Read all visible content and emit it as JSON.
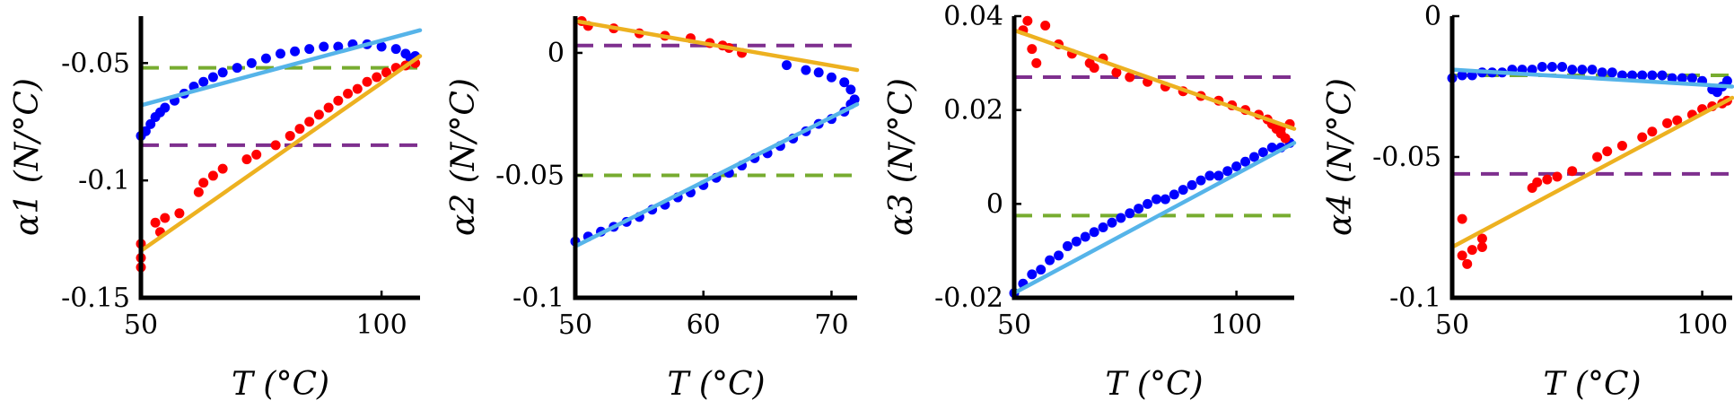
{
  "colors": {
    "blue_points": "#0000ff",
    "red_points": "#ff0000",
    "blue_fit": "#56b4e9",
    "orange_fit": "#edb120",
    "green_dashed": "#77ac30",
    "purple_dashed": "#7e2f8e"
  },
  "chart_data": [
    {
      "type": "scatter",
      "xlabel": "T (°C)",
      "ylabel": "α1 (N/°C)",
      "xlim": [
        50,
        108
      ],
      "ylim": [
        -0.15,
        -0.03
      ],
      "xticks": [
        50,
        100
      ],
      "xtick_labels": [
        "50",
        "100"
      ],
      "yticks": [
        -0.15,
        -0.1,
        -0.05
      ],
      "ytick_labels": [
        "-0.15",
        "-0.1",
        "-0.05"
      ],
      "blue_points": [
        [
          50,
          -0.081
        ],
        [
          51,
          -0.079
        ],
        [
          52,
          -0.076
        ],
        [
          53,
          -0.073
        ],
        [
          54,
          -0.071
        ],
        [
          55,
          -0.069
        ],
        [
          57,
          -0.066
        ],
        [
          59,
          -0.063
        ],
        [
          61,
          -0.06
        ],
        [
          63,
          -0.058
        ],
        [
          65,
          -0.056
        ],
        [
          67,
          -0.054
        ],
        [
          70,
          -0.052
        ],
        [
          73,
          -0.05
        ],
        [
          76,
          -0.048
        ],
        [
          79,
          -0.046
        ],
        [
          82,
          -0.045
        ],
        [
          85,
          -0.044
        ],
        [
          88,
          -0.043
        ],
        [
          91,
          -0.043
        ],
        [
          94,
          -0.042
        ],
        [
          97,
          -0.042
        ],
        [
          100,
          -0.043
        ],
        [
          103,
          -0.044
        ],
        [
          105,
          -0.046
        ],
        [
          106,
          -0.048
        ],
        [
          107,
          -0.047
        ]
      ],
      "red_points": [
        [
          50,
          -0.127
        ],
        [
          50,
          -0.133
        ],
        [
          50,
          -0.137
        ],
        [
          53,
          -0.118
        ],
        [
          54,
          -0.122
        ],
        [
          55,
          -0.116
        ],
        [
          58,
          -0.114
        ],
        [
          62,
          -0.105
        ],
        [
          63,
          -0.101
        ],
        [
          65,
          -0.098
        ],
        [
          67,
          -0.095
        ],
        [
          72,
          -0.091
        ],
        [
          74,
          -0.089
        ],
        [
          78,
          -0.085
        ],
        [
          81,
          -0.081
        ],
        [
          83,
          -0.078
        ],
        [
          85,
          -0.075
        ],
        [
          87,
          -0.072
        ],
        [
          89,
          -0.069
        ],
        [
          91,
          -0.066
        ],
        [
          93,
          -0.063
        ],
        [
          95,
          -0.061
        ],
        [
          97,
          -0.058
        ],
        [
          99,
          -0.056
        ],
        [
          101,
          -0.054
        ],
        [
          103,
          -0.052
        ],
        [
          105,
          -0.051
        ],
        [
          107,
          -0.05
        ]
      ],
      "blue_fit": [
        [
          50,
          -0.068
        ],
        [
          108,
          -0.036
        ]
      ],
      "orange_fit": [
        [
          50,
          -0.13
        ],
        [
          108,
          -0.047
        ]
      ],
      "green_level": -0.052,
      "purple_level": -0.085
    },
    {
      "type": "scatter",
      "xlabel": "T (°C)",
      "ylabel": "α2 (N/°C)",
      "xlim": [
        50,
        72
      ],
      "ylim": [
        -0.1,
        0.015
      ],
      "xticks": [
        50,
        60,
        70
      ],
      "xtick_labels": [
        "50",
        "60",
        "70"
      ],
      "yticks": [
        -0.1,
        -0.05,
        0
      ],
      "ytick_labels": [
        "-0.1",
        "-0.05",
        "0"
      ],
      "blue_points": [
        [
          50,
          -0.077
        ],
        [
          51,
          -0.075
        ],
        [
          52,
          -0.073
        ],
        [
          53,
          -0.071
        ],
        [
          54,
          -0.069
        ],
        [
          55,
          -0.067
        ],
        [
          56,
          -0.064
        ],
        [
          57,
          -0.062
        ],
        [
          58,
          -0.059
        ],
        [
          59,
          -0.057
        ],
        [
          60,
          -0.054
        ],
        [
          61,
          -0.051
        ],
        [
          62,
          -0.049
        ],
        [
          63,
          -0.046
        ],
        [
          64,
          -0.043
        ],
        [
          65,
          -0.041
        ],
        [
          66,
          -0.038
        ],
        [
          67,
          -0.035
        ],
        [
          68,
          -0.032
        ],
        [
          69,
          -0.029
        ],
        [
          70,
          -0.027
        ],
        [
          71,
          -0.024
        ],
        [
          71.5,
          -0.021
        ],
        [
          71.8,
          -0.019
        ],
        [
          71.5,
          -0.015
        ],
        [
          71,
          -0.012
        ],
        [
          70,
          -0.01
        ],
        [
          69,
          -0.008
        ],
        [
          68,
          -0.007
        ],
        [
          66.5,
          -0.005
        ]
      ],
      "red_points": [
        [
          50.5,
          0.013
        ],
        [
          51,
          0.011
        ],
        [
          53,
          0.01
        ],
        [
          55,
          0.008
        ],
        [
          57,
          0.007
        ],
        [
          59,
          0.006
        ],
        [
          60.5,
          0.004
        ],
        [
          61.5,
          0.003
        ],
        [
          62,
          0.002
        ],
        [
          63,
          0.0
        ]
      ],
      "blue_fit": [
        [
          50,
          -0.079
        ],
        [
          72,
          -0.021
        ]
      ],
      "orange_fit": [
        [
          50,
          0.013
        ],
        [
          72,
          -0.007
        ]
      ],
      "green_level": -0.05,
      "purple_level": 0.003
    },
    {
      "type": "scatter",
      "xlabel": "T (°C)",
      "ylabel": "α3 (N/°C)",
      "xlim": [
        50,
        113
      ],
      "ylim": [
        -0.02,
        0.04
      ],
      "xticks": [
        50,
        100
      ],
      "xtick_labels": [
        "50",
        "100"
      ],
      "yticks": [
        -0.02,
        0,
        0.02,
        0.04
      ],
      "ytick_labels": [
        "-0.02",
        "0",
        "0.02",
        "0.04"
      ],
      "blue_points": [
        [
          50,
          -0.019
        ],
        [
          52,
          -0.017
        ],
        [
          54,
          -0.015
        ],
        [
          56,
          -0.014
        ],
        [
          58,
          -0.012
        ],
        [
          60,
          -0.011
        ],
        [
          62,
          -0.009
        ],
        [
          64,
          -0.008
        ],
        [
          66,
          -0.007
        ],
        [
          68,
          -0.006
        ],
        [
          70,
          -0.005
        ],
        [
          72,
          -0.004
        ],
        [
          74,
          -0.003
        ],
        [
          76,
          -0.002
        ],
        [
          78,
          -0.001
        ],
        [
          80,
          0.0
        ],
        [
          82,
          0.001
        ],
        [
          84,
          0.001
        ],
        [
          86,
          0.002
        ],
        [
          88,
          0.003
        ],
        [
          90,
          0.004
        ],
        [
          92,
          0.005
        ],
        [
          94,
          0.006
        ],
        [
          96,
          0.006
        ],
        [
          98,
          0.007
        ],
        [
          100,
          0.008
        ],
        [
          102,
          0.009
        ],
        [
          104,
          0.01
        ],
        [
          106,
          0.011
        ],
        [
          108,
          0.012
        ],
        [
          110,
          0.012
        ],
        [
          112,
          0.013
        ]
      ],
      "red_points": [
        [
          52,
          0.037
        ],
        [
          53,
          0.039
        ],
        [
          54,
          0.033
        ],
        [
          55,
          0.03
        ],
        [
          57,
          0.038
        ],
        [
          60,
          0.034
        ],
        [
          63,
          0.032
        ],
        [
          67,
          0.03
        ],
        [
          68,
          0.029
        ],
        [
          70,
          0.031
        ],
        [
          73,
          0.028
        ],
        [
          76,
          0.027
        ],
        [
          80,
          0.026
        ],
        [
          84,
          0.025
        ],
        [
          88,
          0.024
        ],
        [
          92,
          0.023
        ],
        [
          96,
          0.022
        ],
        [
          99,
          0.021
        ],
        [
          102,
          0.02
        ],
        [
          105,
          0.019
        ],
        [
          107,
          0.018
        ],
        [
          108,
          0.017
        ],
        [
          109,
          0.016
        ],
        [
          110,
          0.015
        ],
        [
          111,
          0.014
        ],
        [
          110,
          0.016
        ],
        [
          112,
          0.017
        ]
      ],
      "blue_fit": [
        [
          50,
          -0.019
        ],
        [
          113,
          0.013
        ]
      ],
      "orange_fit": [
        [
          50,
          0.037
        ],
        [
          113,
          0.016
        ]
      ],
      "green_level": -0.0025,
      "purple_level": 0.027
    },
    {
      "type": "scatter",
      "xlabel": "T (°C)",
      "ylabel": "α4 (N/°C)",
      "xlim": [
        50,
        106
      ],
      "ylim": [
        -0.1,
        0.0
      ],
      "xticks": [
        50,
        100
      ],
      "xtick_labels": [
        "50",
        "100"
      ],
      "yticks": [
        -0.1,
        -0.05,
        0
      ],
      "ytick_labels": [
        "-0.1",
        "-0.05",
        "0"
      ],
      "blue_points": [
        [
          50,
          -0.022
        ],
        [
          52,
          -0.021
        ],
        [
          54,
          -0.021
        ],
        [
          56,
          -0.02
        ],
        [
          58,
          -0.02
        ],
        [
          60,
          -0.02
        ],
        [
          62,
          -0.019
        ],
        [
          64,
          -0.019
        ],
        [
          66,
          -0.019
        ],
        [
          68,
          -0.018
        ],
        [
          70,
          -0.018
        ],
        [
          72,
          -0.018
        ],
        [
          74,
          -0.019
        ],
        [
          76,
          -0.019
        ],
        [
          78,
          -0.019
        ],
        [
          80,
          -0.02
        ],
        [
          82,
          -0.02
        ],
        [
          84,
          -0.021
        ],
        [
          86,
          -0.021
        ],
        [
          88,
          -0.021
        ],
        [
          90,
          -0.021
        ],
        [
          92,
          -0.021
        ],
        [
          94,
          -0.022
        ],
        [
          96,
          -0.022
        ],
        [
          98,
          -0.022
        ],
        [
          100,
          -0.023
        ],
        [
          102,
          -0.026
        ],
        [
          103,
          -0.027
        ],
        [
          104,
          -0.025
        ],
        [
          105,
          -0.023
        ]
      ],
      "red_points": [
        [
          52,
          -0.072
        ],
        [
          52,
          -0.085
        ],
        [
          53,
          -0.088
        ],
        [
          54,
          -0.083
        ],
        [
          56,
          -0.079
        ],
        [
          56,
          -0.082
        ],
        [
          66,
          -0.061
        ],
        [
          67,
          -0.059
        ],
        [
          69,
          -0.058
        ],
        [
          71,
          -0.057
        ],
        [
          74,
          -0.055
        ],
        [
          79,
          -0.05
        ],
        [
          81,
          -0.048
        ],
        [
          84,
          -0.046
        ],
        [
          88,
          -0.043
        ],
        [
          90,
          -0.041
        ],
        [
          93,
          -0.038
        ],
        [
          95,
          -0.037
        ],
        [
          98,
          -0.035
        ],
        [
          100,
          -0.033
        ],
        [
          102,
          -0.032
        ],
        [
          104,
          -0.031
        ],
        [
          105,
          -0.03
        ]
      ],
      "blue_fit": [
        [
          50,
          -0.019
        ],
        [
          106,
          -0.025
        ]
      ],
      "orange_fit": [
        [
          50,
          -0.082
        ],
        [
          106,
          -0.029
        ]
      ],
      "green_level": -0.021,
      "purple_level": -0.056
    }
  ]
}
